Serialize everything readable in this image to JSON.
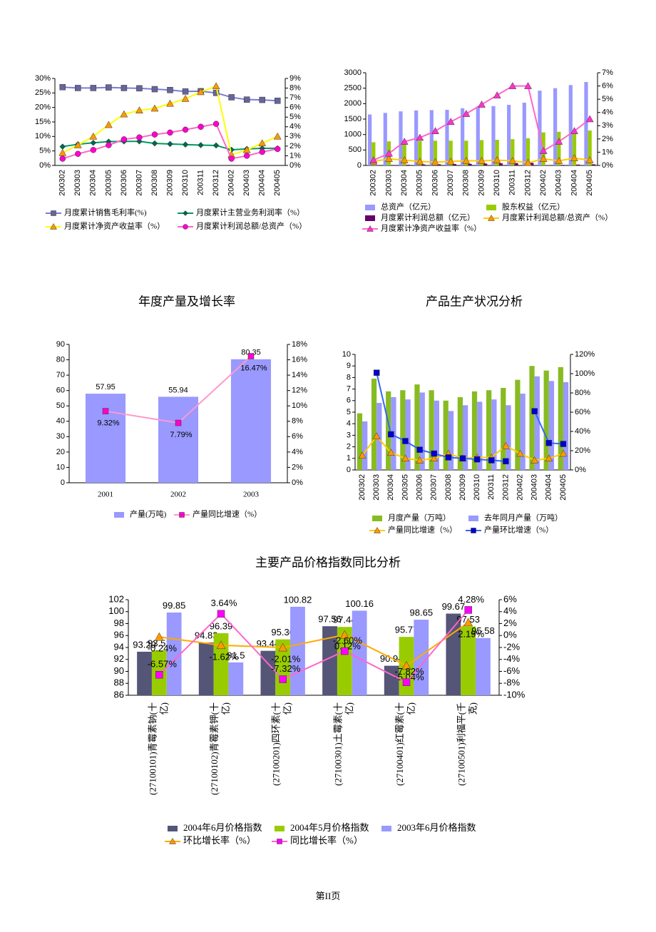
{
  "chart_data": [
    {
      "type": "line",
      "categories": [
        "200302",
        "200303",
        "200304",
        "200305",
        "200306",
        "200307",
        "200308",
        "200309",
        "200310",
        "200311",
        "200312",
        "200402",
        "200403",
        "200404",
        "200405"
      ],
      "ylim": [
        0,
        30
      ],
      "yticks": [
        {
          "value": 0,
          "label": "0%"
        },
        {
          "value": 5,
          "label": "5%"
        },
        {
          "value": 10,
          "label": "10%"
        },
        {
          "value": 15,
          "label": "15%"
        },
        {
          "value": 20,
          "label": "20%"
        },
        {
          "value": 25,
          "label": "25%"
        },
        {
          "value": 30,
          "label": "30%"
        }
      ],
      "y2lim": [
        0,
        9
      ],
      "y2ticks": [
        {
          "value": 0,
          "label": "0%"
        },
        {
          "value": 1,
          "label": "1%"
        },
        {
          "value": 2,
          "label": "2%"
        },
        {
          "value": 3,
          "label": "3%"
        },
        {
          "value": 4,
          "label": "4%"
        },
        {
          "value": 5,
          "label": "5%"
        },
        {
          "value": 6,
          "label": "6%"
        },
        {
          "value": 7,
          "label": "7%"
        },
        {
          "value": 8,
          "label": "8%"
        },
        {
          "value": 9,
          "label": "9%"
        }
      ],
      "series": [
        {
          "name": "月度累计销售毛利率(%)",
          "kind": "line",
          "marker": "square",
          "color": "#7b7bd6",
          "marker_color": "#66669a",
          "values": [
            27,
            26.7,
            26.7,
            26.9,
            26.7,
            26.6,
            26.3,
            26,
            25.5,
            25.6,
            25,
            23.5,
            22.7,
            22.6,
            22.3
          ]
        },
        {
          "name": "月度累计主营业务利润率（%）",
          "kind": "line",
          "marker": "diamond",
          "color": "#009966",
          "marker_color": "#00664d",
          "values": [
            6.5,
            7.3,
            7.8,
            8.2,
            8.3,
            8.3,
            7.6,
            7.4,
            7.2,
            7,
            6.9,
            5.4,
            5.7,
            5.9,
            5.9
          ]
        },
        {
          "name": "月度累计净资产收益率（%）",
          "kind": "line",
          "marker": "triangle",
          "axis": "y2",
          "color": "#ffff00",
          "marker_color": "#ff9900",
          "values": [
            1.3,
            2.1,
            3,
            4.2,
            5.3,
            5.7,
            5.9,
            6.4,
            6.9,
            7.6,
            8.2,
            1.1,
            1.6,
            2.3,
            3
          ]
        },
        {
          "name": "月度累计利润总额/总资产（%）",
          "kind": "line",
          "marker": "circle",
          "axis": "y2",
          "color": "#ff66cc",
          "marker_color": "#ff00cc",
          "values": [
            0.7,
            1.2,
            1.6,
            2.1,
            2.7,
            2.9,
            3.2,
            3.4,
            3.7,
            4,
            4.3,
            0.7,
            1,
            1.4,
            1.7
          ]
        }
      ]
    },
    {
      "type": "bar",
      "categories": [
        "200302",
        "200303",
        "200304",
        "200305",
        "200306",
        "200307",
        "200308",
        "200309",
        "200310",
        "200311",
        "200312",
        "200402",
        "200403",
        "200404",
        "200405"
      ],
      "ylim": [
        0,
        3000
      ],
      "yticks": [
        0,
        500,
        1000,
        1500,
        2000,
        2500,
        3000
      ],
      "y2lim": [
        0,
        7
      ],
      "y2ticks": [
        {
          "value": 0,
          "label": "0%"
        },
        {
          "value": 1,
          "label": "1%"
        },
        {
          "value": 2,
          "label": "2%"
        },
        {
          "value": 3,
          "label": "3%"
        },
        {
          "value": 4,
          "label": "4%"
        },
        {
          "value": 5,
          "label": "5%"
        },
        {
          "value": 6,
          "label": "6%"
        },
        {
          "value": 7,
          "label": "7%"
        }
      ],
      "series": [
        {
          "name": "总资产（亿元）",
          "kind": "bar",
          "color": "#9999ff",
          "values": [
            1650,
            1700,
            1750,
            1780,
            1790,
            1800,
            1850,
            1900,
            1920,
            1960,
            2030,
            2420,
            2500,
            2600,
            2700
          ]
        },
        {
          "name": "股东权益（亿元）",
          "kind": "bar",
          "color": "#99cc00",
          "values": [
            750,
            780,
            780,
            790,
            800,
            800,
            800,
            820,
            830,
            850,
            880,
            1070,
            1090,
            1100,
            1130
          ]
        },
        {
          "name": "月度累计利润总额（亿元）",
          "kind": "bar",
          "color": "#660066",
          "values": [
            8,
            15,
            22,
            30,
            38,
            45,
            52,
            60,
            68,
            76,
            83,
            9,
            18,
            28,
            37
          ]
        },
        {
          "name": "月度累计利润总额/总资产（%）",
          "kind": "line",
          "marker": "triangle",
          "axis": "y2",
          "color": "#ffcc00",
          "marker_color": "#ff9900",
          "values": [
            0.3,
            0.5,
            0.4,
            0.3,
            0.25,
            0.3,
            0.35,
            0.35,
            0.4,
            0.35,
            0.2,
            0.5,
            0.35,
            0.55,
            0.4
          ]
        },
        {
          "name": "月度累计净资产收益率（%）",
          "kind": "line",
          "marker": "triangle",
          "axis": "y2",
          "color": "#ff66cc",
          "marker_color": "#ff33cc",
          "values": [
            0.4,
            0.9,
            1.8,
            2.1,
            2.6,
            3.3,
            3.9,
            4.6,
            5.3,
            6,
            6,
            1.1,
            1.8,
            2.6,
            3.5
          ]
        }
      ]
    },
    {
      "type": "bar",
      "title": "年度产量及增长率",
      "categories": [
        "2001",
        "2002",
        "2003"
      ],
      "ylim": [
        0,
        90
      ],
      "yticks": [
        0,
        10,
        20,
        30,
        40,
        50,
        60,
        70,
        80,
        90
      ],
      "y2lim": [
        0,
        18
      ],
      "y2ticks": [
        {
          "value": 0,
          "label": "0%"
        },
        {
          "value": 2,
          "label": "2%"
        },
        {
          "value": 4,
          "label": "4%"
        },
        {
          "value": 6,
          "label": "6%"
        },
        {
          "value": 8,
          "label": "8%"
        },
        {
          "value": 10,
          "label": "10%"
        },
        {
          "value": 12,
          "label": "12%"
        },
        {
          "value": 14,
          "label": "14%"
        },
        {
          "value": 16,
          "label": "16%"
        },
        {
          "value": 18,
          "label": "18%"
        }
      ],
      "series": [
        {
          "name": "产量(万吨)",
          "kind": "bar",
          "color": "#9999ff",
          "data_labels": true,
          "values": [
            57.95,
            55.94,
            80.35
          ]
        },
        {
          "name": "产量同比增速（%）",
          "kind": "line",
          "marker": "square",
          "axis": "y2",
          "color": "#ff99cc",
          "marker_color": "#ff00cc",
          "values": [
            9.32,
            7.79,
            16.47
          ],
          "value_labels": [
            "9.32%",
            "7.79%",
            "16.47%"
          ]
        }
      ]
    },
    {
      "type": "bar",
      "title": "产品生产状况分析",
      "categories": [
        "200302",
        "200303",
        "200304",
        "200305",
        "200306",
        "200307",
        "200308",
        "200309",
        "200310",
        "200311",
        "200312",
        "200402",
        "200403",
        "200404",
        "200405"
      ],
      "ylim": [
        0,
        10
      ],
      "yticks": [
        0,
        1,
        2,
        3,
        4,
        5,
        6,
        7,
        8,
        9,
        10
      ],
      "y2lim": [
        0,
        120
      ],
      "y2ticks": [
        {
          "value": 0,
          "label": "0%"
        },
        {
          "value": 20,
          "label": "20%"
        },
        {
          "value": 40,
          "label": "40%"
        },
        {
          "value": 60,
          "label": "60%"
        },
        {
          "value": 80,
          "label": "80%"
        },
        {
          "value": 100,
          "label": "100%"
        },
        {
          "value": 120,
          "label": "120%"
        }
      ],
      "series": [
        {
          "name": "月度产量（万吨）",
          "kind": "bar",
          "color": "#88bb22",
          "values": [
            4.9,
            7.9,
            6.8,
            6.9,
            7.4,
            6.9,
            6,
            6.3,
            6.8,
            6.9,
            7.1,
            7.8,
            9,
            8.6,
            8.9
          ]
        },
        {
          "name": "去年同月产量（万吨）",
          "kind": "bar",
          "color": "#9999ff",
          "values": [
            4.2,
            5.8,
            6.3,
            6.1,
            6.7,
            6,
            5.1,
            5.6,
            5.9,
            6.1,
            5.6,
            6.6,
            8.1,
            7.7,
            7.6
          ]
        },
        {
          "name": "产量同比增速（%）",
          "kind": "line",
          "marker": "triangle",
          "axis": "y2",
          "color": "#ffcc00",
          "marker_color": "#ff9900",
          "values": [
            15,
            35,
            18,
            12,
            10,
            12,
            17,
            12,
            13,
            13,
            25,
            17,
            10,
            12,
            17
          ]
        },
        {
          "name": "产量环比增速（%）",
          "kind": "line",
          "marker": "square",
          "axis": "y2",
          "color": "#3366ff",
          "marker_color": "#0000cc",
          "values": [
            null,
            101,
            37,
            30,
            21,
            17,
            13,
            12,
            11,
            10,
            9,
            null,
            61,
            28,
            27
          ]
        }
      ]
    },
    {
      "type": "bar",
      "title": "主要产品价格指数同比分析",
      "categories": [
        "(27100101)青霉素钠(十亿)",
        "(27100102)青霉素钾(十亿)",
        "(27100201)四环素(十亿)",
        "(27100301)土霉素(十亿)",
        "(27100401)红霉素(十亿)",
        "(27100501)利福平(千克)"
      ],
      "ylim": [
        86,
        102
      ],
      "yticks": [
        86,
        88,
        90,
        92,
        94,
        96,
        98,
        100,
        102
      ],
      "y2lim": [
        -10,
        6
      ],
      "y2ticks": [
        {
          "value": -10,
          "label": "-10%"
        },
        {
          "value": -8,
          "label": "-8%"
        },
        {
          "value": -6,
          "label": "-6%"
        },
        {
          "value": -4,
          "label": "-4%"
        },
        {
          "value": -2,
          "label": "-2%"
        },
        {
          "value": 0,
          "label": "0%"
        },
        {
          "value": 2,
          "label": "2%"
        },
        {
          "value": 4,
          "label": "4%"
        },
        {
          "value": 6,
          "label": "6%"
        }
      ],
      "series": [
        {
          "name": "2004年6月价格指数",
          "kind": "bar",
          "color": "#555577",
          "data_labels": true,
          "values": [
            93.29,
            94.83,
            93.44,
            97.56,
            90.94,
            99.67
          ]
        },
        {
          "name": "2004年5月价格指数",
          "kind": "bar",
          "color": "#99cc00",
          "data_labels": true,
          "values": [
            93.51,
            96.39,
            95.36,
            97.44,
            95.77,
            97.53
          ]
        },
        {
          "name": "2003年6月价格指数",
          "kind": "bar",
          "color": "#9999ff",
          "data_labels": true,
          "values": [
            99.85,
            91.5,
            100.82,
            100.16,
            98.65,
            95.58
          ]
        },
        {
          "name": "环比增长率（%）",
          "kind": "line",
          "marker": "triangle",
          "axis": "y2",
          "color": "#ffaa00",
          "marker_color": "#ff9900",
          "values": [
            -0.24,
            -1.62,
            -2.01,
            0.12,
            -5.04,
            2.19
          ],
          "value_labels": [
            "-0.24%",
            "-1.62%",
            "-2.01%",
            "0.12%",
            "-5.04%",
            "2.19%"
          ]
        },
        {
          "name": "同比增长率（%）",
          "kind": "line",
          "marker": "square",
          "axis": "y2",
          "color": "#ff66cc",
          "marker_color": "#ff00ff",
          "values": [
            -6.57,
            3.64,
            -7.32,
            -2.6,
            -7.82,
            4.28
          ],
          "value_labels": [
            "-6.57%",
            "3.64%",
            "-7.32%",
            "-2.60%",
            "-7.82%",
            "4.28%"
          ]
        }
      ]
    }
  ],
  "footer": "第II页"
}
